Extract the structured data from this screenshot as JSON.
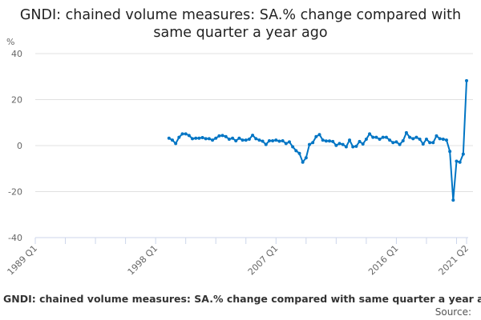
{
  "chart_data": {
    "type": "line",
    "title": "GNDI: chained volume measures: SA.% change compared with same quarter a year ago",
    "ylabel": "%",
    "xlabel": "",
    "ylim": [
      -40,
      40
    ],
    "yticks": [
      40,
      20,
      0,
      -20,
      -40
    ],
    "xrange": [
      "1989 Q1",
      "2021 Q2"
    ],
    "xticks": [
      "1989 Q1",
      "1998 Q1",
      "2007 Q1",
      "2016 Q1",
      "2021 Q2"
    ],
    "grid": "horizontal",
    "legend": "none",
    "color": "#0075c4",
    "series": [
      {
        "start": "1999 Q1",
        "frequency": "quarterly",
        "values": [
          3.2,
          2.4,
          0.9,
          3.6,
          5.1,
          5.1,
          4.4,
          3.0,
          3.2,
          3.2,
          3.5,
          3.0,
          3.0,
          2.4,
          3.2,
          4.2,
          4.4,
          3.9,
          2.8,
          3.2,
          2.1,
          3.2,
          2.4,
          2.4,
          2.8,
          4.5,
          3.0,
          2.4,
          1.9,
          0.5,
          2.1,
          2.1,
          2.4,
          1.9,
          2.1,
          0.9,
          1.6,
          -0.5,
          -2.2,
          -3.4,
          -7.2,
          -5.3,
          0.5,
          1.3,
          3.9,
          4.8,
          2.4,
          2.0,
          2.0,
          1.8,
          0.1,
          0.9,
          0.5,
          -0.5,
          2.4,
          -0.5,
          -0.3,
          1.8,
          0.7,
          2.8,
          5.1,
          3.6,
          3.6,
          2.8,
          3.6,
          3.6,
          2.4,
          1.3,
          1.6,
          0.5,
          2.1,
          5.6,
          3.6,
          3.0,
          3.6,
          2.8,
          0.7,
          2.8,
          1.3,
          1.3,
          4.2,
          3.0,
          2.8,
          2.4,
          -2.5,
          -23.7,
          -6.8,
          -7.2,
          -3.7,
          28.2
        ]
      }
    ]
  },
  "footer": {
    "title": "GNDI: chained volume measures: SA.% change compared with same quarter a year a",
    "source": "Source:"
  }
}
